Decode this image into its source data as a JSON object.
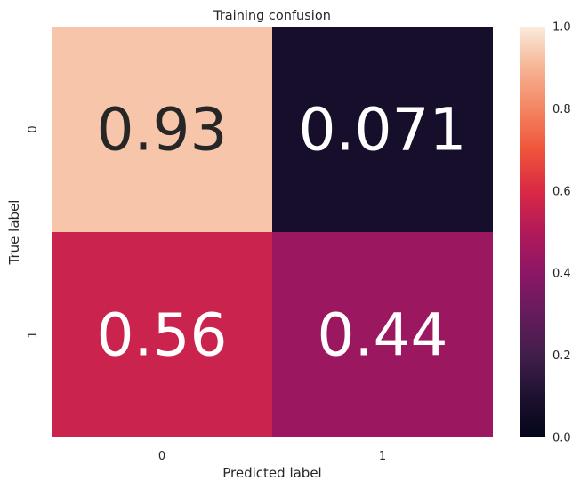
{
  "chart_data": {
    "type": "heatmap",
    "title": "Training confusion",
    "xlabel": "Predicted label",
    "ylabel": "True label",
    "x_categories": [
      "0",
      "1"
    ],
    "y_categories": [
      "0",
      "1"
    ],
    "values": [
      [
        0.93,
        0.071
      ],
      [
        0.56,
        0.44
      ]
    ],
    "annotations": [
      [
        "0.93",
        "0.071"
      ],
      [
        "0.56",
        "0.44"
      ]
    ],
    "colorbar": {
      "vmin": 0.0,
      "vmax": 1.0,
      "ticks": [
        0.0,
        0.2,
        0.4,
        0.6,
        0.8,
        1.0
      ],
      "tick_labels": [
        "0.0",
        "0.2",
        "0.4",
        "0.6",
        "0.8",
        "1.0"
      ],
      "colormap": "rocket"
    },
    "grid": false
  }
}
